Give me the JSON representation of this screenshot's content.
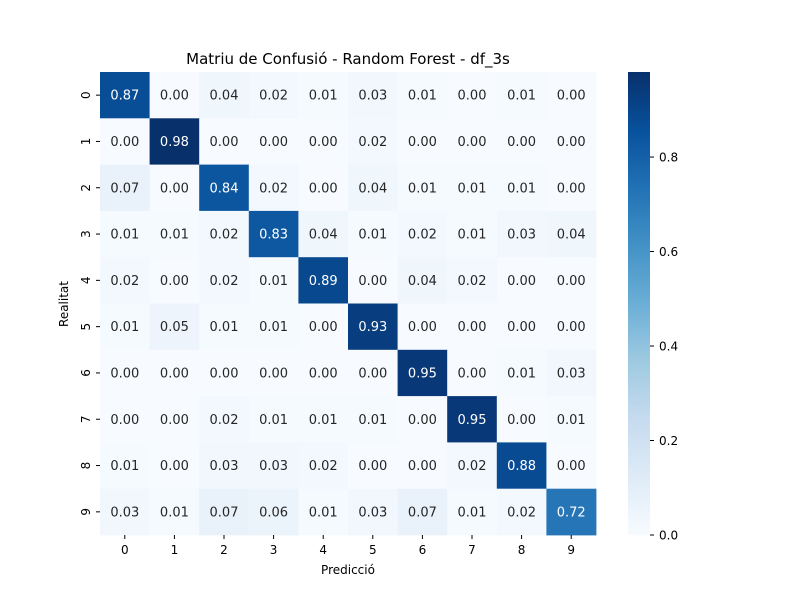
{
  "chart_data": {
    "type": "heatmap",
    "title": "Matriu de Confusió - Random Forest - df_3s",
    "xlabel": "Predicció",
    "ylabel": "Realitat",
    "x_categories": [
      "0",
      "1",
      "2",
      "3",
      "4",
      "5",
      "6",
      "7",
      "8",
      "9"
    ],
    "y_categories": [
      "0",
      "1",
      "2",
      "3",
      "4",
      "5",
      "6",
      "7",
      "8",
      "9"
    ],
    "values": [
      [
        0.87,
        0.0,
        0.04,
        0.02,
        0.01,
        0.03,
        0.01,
        0.0,
        0.01,
        0.0
      ],
      [
        0.0,
        0.98,
        0.0,
        0.0,
        0.0,
        0.02,
        0.0,
        0.0,
        0.0,
        0.0
      ],
      [
        0.07,
        0.0,
        0.84,
        0.02,
        0.0,
        0.04,
        0.01,
        0.01,
        0.01,
        0.0
      ],
      [
        0.01,
        0.01,
        0.02,
        0.83,
        0.04,
        0.01,
        0.02,
        0.01,
        0.03,
        0.04
      ],
      [
        0.02,
        0.0,
        0.02,
        0.01,
        0.89,
        0.0,
        0.04,
        0.02,
        0.0,
        0.0
      ],
      [
        0.01,
        0.05,
        0.01,
        0.01,
        0.0,
        0.93,
        0.0,
        0.0,
        0.0,
        0.0
      ],
      [
        0.0,
        0.0,
        0.0,
        0.0,
        0.0,
        0.0,
        0.95,
        0.0,
        0.01,
        0.03
      ],
      [
        0.0,
        0.0,
        0.02,
        0.01,
        0.01,
        0.01,
        0.0,
        0.95,
        0.0,
        0.01
      ],
      [
        0.01,
        0.0,
        0.03,
        0.03,
        0.02,
        0.0,
        0.0,
        0.02,
        0.88,
        0.0
      ],
      [
        0.03,
        0.01,
        0.07,
        0.06,
        0.01,
        0.03,
        0.07,
        0.01,
        0.02,
        0.72
      ]
    ],
    "colormap": "Blues",
    "colorbar": {
      "range": [
        0.0,
        0.98
      ],
      "ticks": [
        0.0,
        0.2,
        0.4,
        0.6,
        0.8
      ],
      "tick_labels": [
        "0.0",
        "0.2",
        "0.4",
        "0.6",
        "0.8"
      ]
    },
    "colors": {
      "low": "#f7fbff",
      "high": "#08306b",
      "text_dark": "#262626",
      "text_light": "#ffffff"
    },
    "grid": false
  }
}
